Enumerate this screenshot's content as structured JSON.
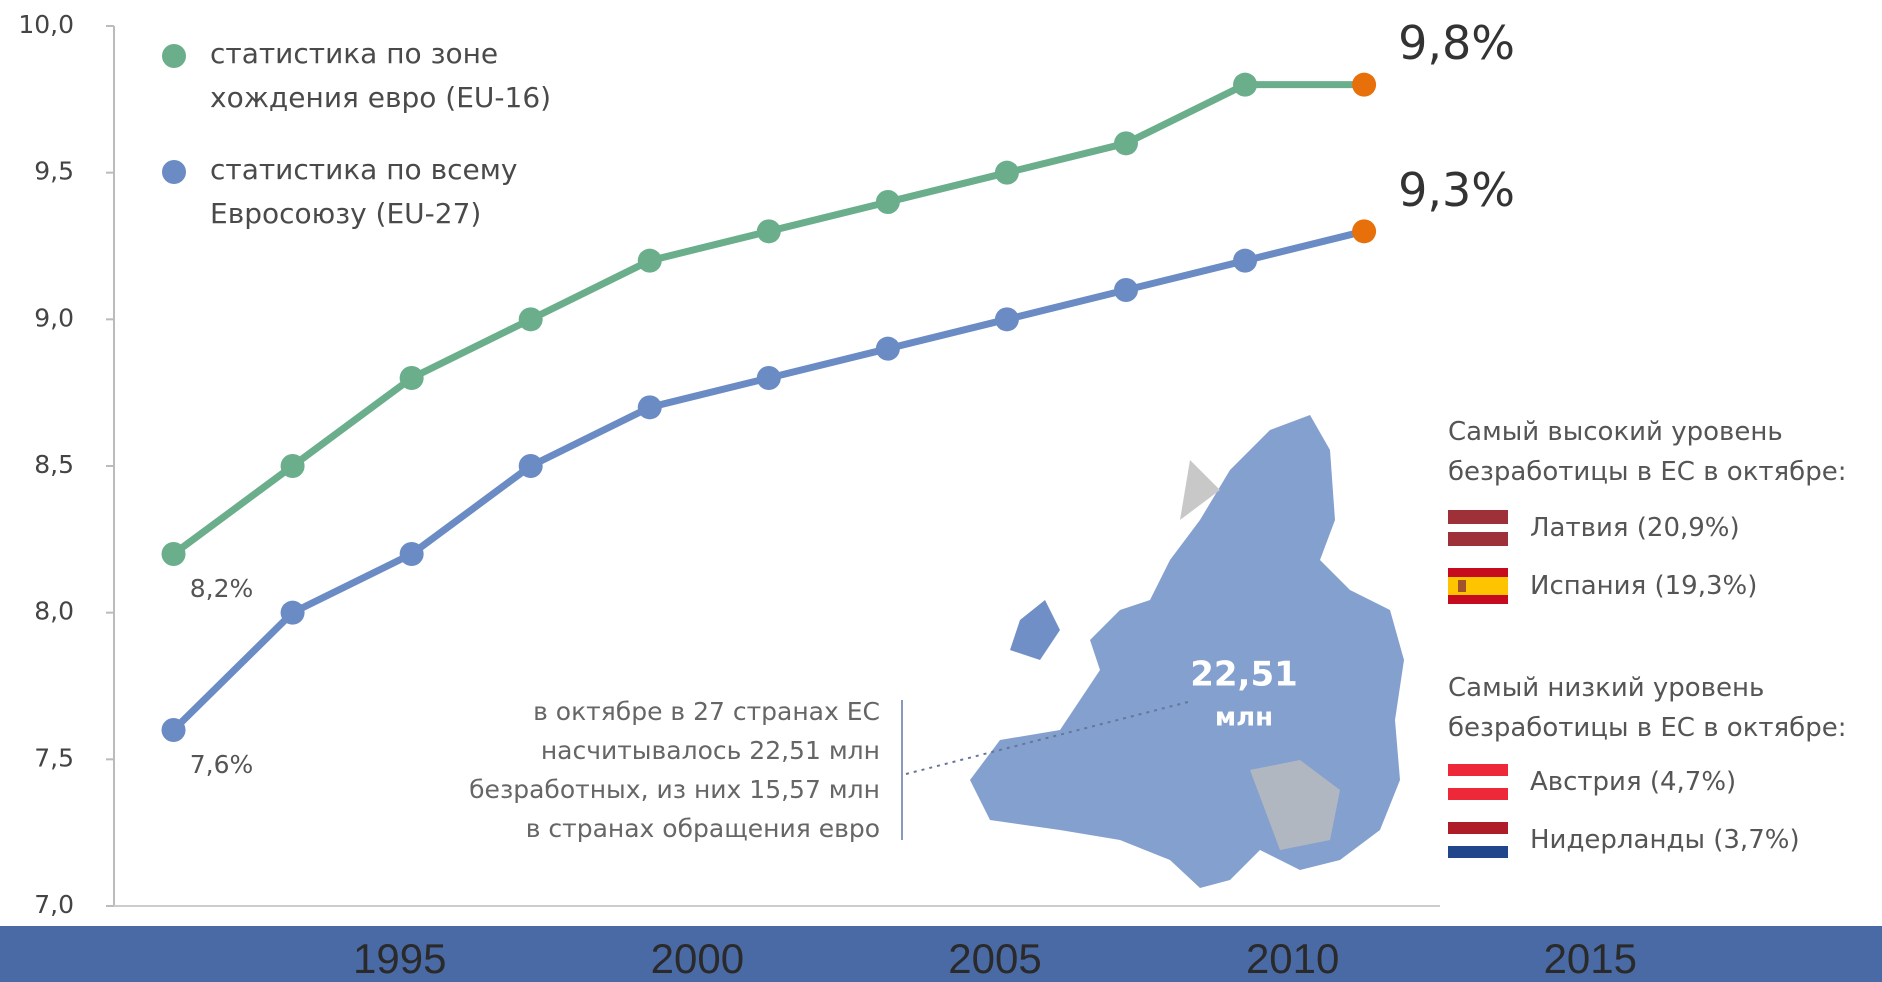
{
  "chart_data": {
    "type": "line",
    "x": [
      1991.2,
      1993.2,
      1995.2,
      1997.2,
      1999.2,
      2001.2,
      2003.2,
      2005.2,
      2007.2,
      2009.2,
      2011.2
    ],
    "series": [
      {
        "name": "статистика по зоне\nхождения евро (EU-16)",
        "color": "#6aae8b",
        "values": [
          8.2,
          8.5,
          8.8,
          9.0,
          9.2,
          9.3,
          9.4,
          9.5,
          9.6,
          9.8,
          9.8
        ],
        "value_labels": [
          "8,2%",
          null,
          null,
          null,
          null,
          null,
          null,
          null,
          null,
          null,
          "9,8%"
        ]
      },
      {
        "name": "статистика по всему\nЕвросоюзу (EU-27)",
        "color": "#6a8bc3",
        "values": [
          7.6,
          8.0,
          8.2,
          8.5,
          8.7,
          8.8,
          8.9,
          9.0,
          9.1,
          9.2,
          9.3
        ],
        "value_labels": [
          "7,6%",
          null,
          null,
          null,
          null,
          null,
          null,
          null,
          null,
          null,
          "9,3%"
        ]
      }
    ],
    "highlight_color": "#e8700a",
    "xlim": [
      1990.2,
      2019.9
    ],
    "xticks": [
      1995,
      2000,
      2005,
      2010,
      2015
    ],
    "ylim": [
      7,
      10
    ],
    "yticks": [
      {
        "value": 7,
        "label": "7,0"
      },
      {
        "value": 7.5,
        "label": "7,5"
      },
      {
        "value": 8,
        "label": "8,0"
      },
      {
        "value": 8.5,
        "label": "8,5"
      },
      {
        "value": 9,
        "label": "9,0"
      },
      {
        "value": 9.5,
        "label": "9,5"
      },
      {
        "value": 10,
        "label": "10,0"
      }
    ],
    "annotation": "в октябре в 27 странах ЕС\nнасчитывалось 22,51 млн\nбезработных, из них 15,57 млн\nв странах обращения евро",
    "map_label": [
      "22,51",
      "млн"
    ],
    "panels": [
      {
        "heading": "Самый высокий уровень\nбезработицы в ЕС в октябре:",
        "items": [
          "Латвия (20,9%)",
          "Испания (19,3%)"
        ]
      },
      {
        "heading": "Самый низкий уровень\nбезработицы в ЕС в октябре:",
        "items": [
          "Австрия (4,7%)",
          "Нидерланды (3,7%)"
        ]
      }
    ]
  }
}
